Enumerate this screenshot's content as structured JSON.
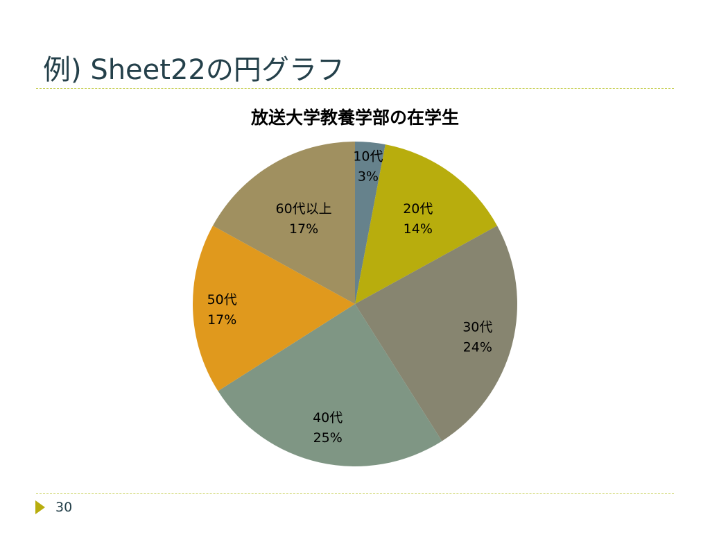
{
  "slide": {
    "title": "例) Sheet22の円グラフ",
    "page_number": "30"
  },
  "chart_data": {
    "type": "pie",
    "title": "放送大学教養学部の在学生",
    "categories": [
      "10代",
      "20代",
      "30代",
      "40代",
      "50代",
      "60代以上"
    ],
    "values": [
      3,
      14,
      24,
      25,
      17,
      17
    ],
    "percent_labels": [
      "3%",
      "14%",
      "24%",
      "25%",
      "17%",
      "17%"
    ],
    "colors": [
      "#66828c",
      "#b8ad0d",
      "#878570",
      "#7f9684",
      "#e0991d",
      "#a09060"
    ],
    "start_angle_deg": 0,
    "direction": "clockwise"
  },
  "colors": {
    "title": "#24404a",
    "accent": "#b8ad0d",
    "divider": "#c9d15a"
  }
}
